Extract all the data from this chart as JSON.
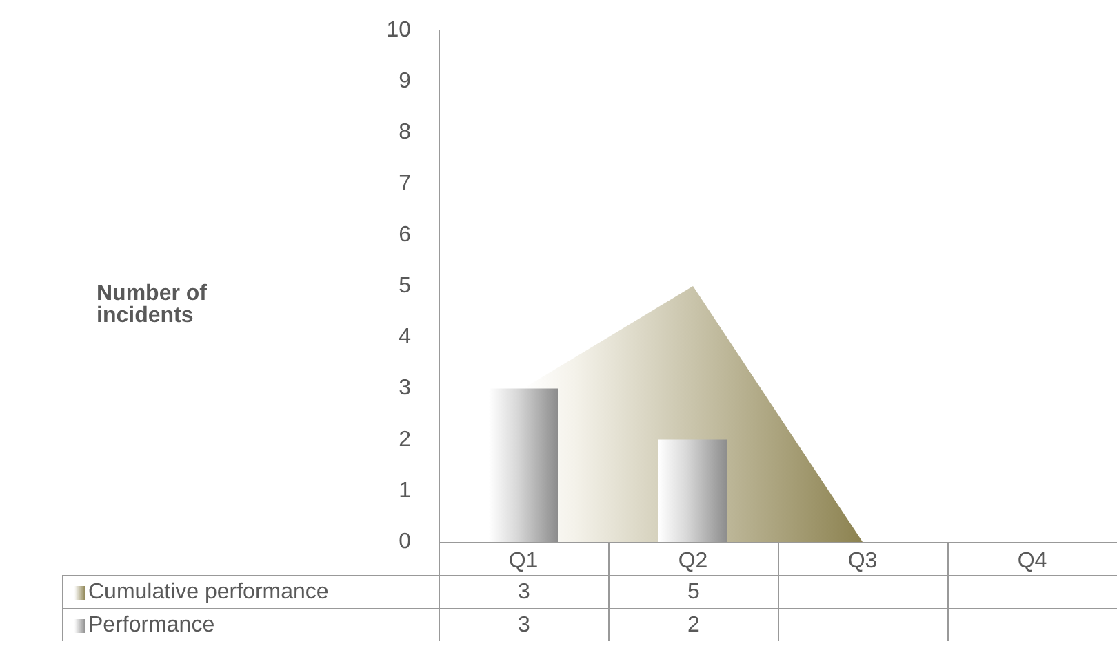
{
  "chart_data": {
    "type": "bar",
    "annotations": [
      "Number of incidents"
    ],
    "categories": [
      "Q1",
      "Q2",
      "Q3",
      "Q4"
    ],
    "ylim": [
      0,
      10
    ],
    "yticks": [
      0,
      1,
      2,
      3,
      4,
      5,
      6,
      7,
      8,
      9,
      10
    ],
    "grid": false,
    "legend": "bottom",
    "series": [
      {
        "name": "Cumulative performance",
        "type": "area",
        "color": "#8c8250",
        "values": [
          3,
          5,
          0,
          null
        ],
        "value_labels": [
          "3",
          "5",
          null,
          null
        ]
      },
      {
        "name": "Performance",
        "color": "#8c8c8c",
        "values": [
          3,
          2,
          null,
          null
        ],
        "value_labels": [
          "3",
          "2",
          null,
          null
        ]
      }
    ]
  }
}
